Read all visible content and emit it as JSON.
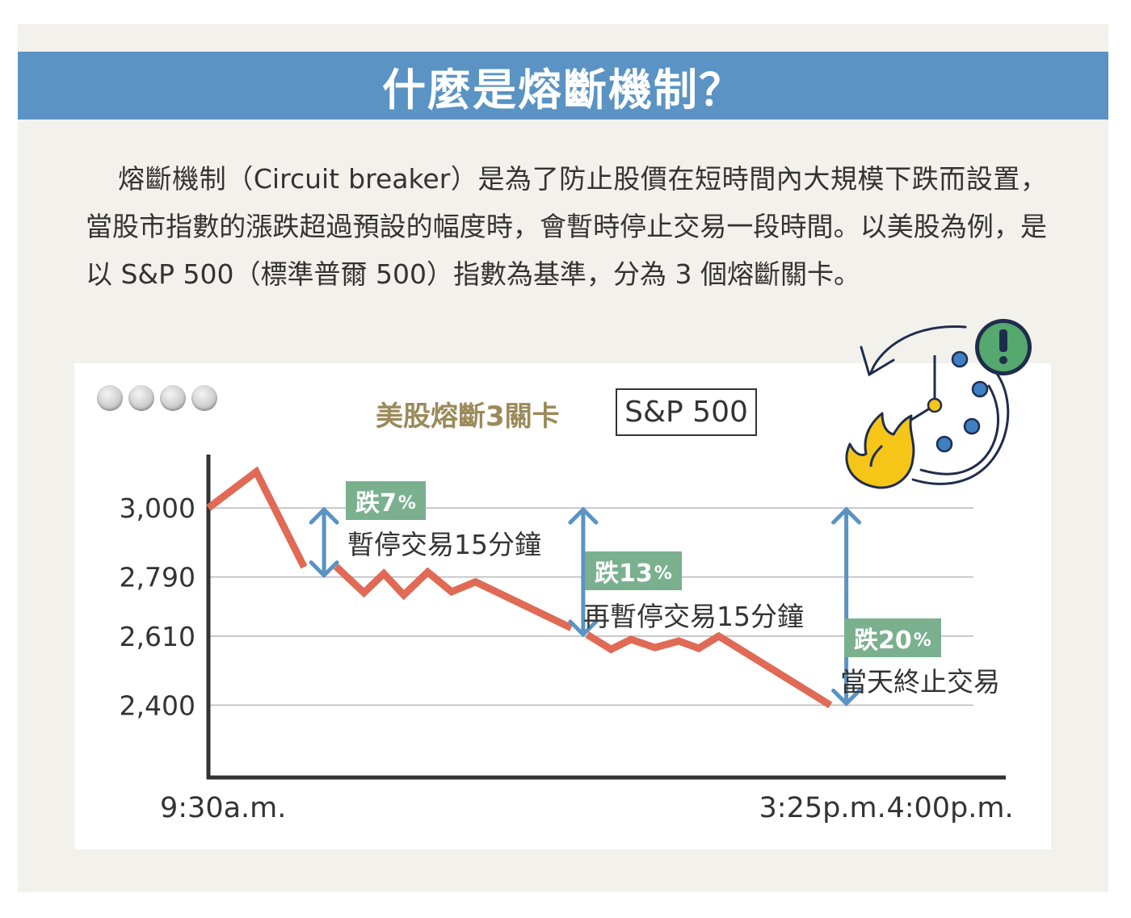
{
  "page": {
    "title": "什麼是熔斷機制？",
    "intro": "熔斷機制（Circuit breaker）是為了防止股價在短時間內大規模下跌而設置，當股市指數的漲跌超過預設的幅度時，會暫時停止交易一段時間。以美股為例，是以 S&P 500（標準普爾 500）指數為基準，分為 3 個熔斷關卡。"
  },
  "chart_data": {
    "type": "line",
    "title": "美股熔斷3關卡",
    "index_label": "S&P 500",
    "yticks": [
      3000,
      2790,
      2610,
      2400
    ],
    "ytick_labels": [
      "3,000",
      "2,790",
      "2,610",
      "2,400"
    ],
    "ylim": [
      2180,
      3150
    ],
    "xlim": [
      0,
      1000
    ],
    "xtick_labels": [
      {
        "x": 0,
        "label": "9:30a.m."
      },
      {
        "x": 760,
        "label": "3:25p.m."
      },
      {
        "x": 920,
        "label": "4:00p.m."
      }
    ],
    "series": [
      {
        "color": "#e06a55",
        "segments": [
          [
            [
              0,
              3000
            ],
            [
              60,
              3110
            ],
            [
              120,
              2820
            ]
          ],
          [
            [
              160,
              2822
            ],
            [
              195,
              2742
            ],
            [
              220,
              2800
            ],
            [
              245,
              2735
            ],
            [
              275,
              2805
            ],
            [
              305,
              2745
            ],
            [
              335,
              2775
            ],
            [
              455,
              2635
            ]
          ],
          [
            [
              475,
              2615
            ],
            [
              505,
              2570
            ],
            [
              530,
              2600
            ],
            [
              560,
              2575
            ],
            [
              590,
              2595
            ],
            [
              615,
              2573
            ],
            [
              640,
              2610
            ],
            [
              780,
              2400
            ]
          ]
        ]
      }
    ],
    "gridlines": [
      3000,
      2790,
      2610,
      2400
    ],
    "grid": true,
    "annotations": [
      {
        "badge_main": "跌7",
        "badge_unit": "%",
        "text": "暫停交易15分鐘",
        "x": 145,
        "y_from": 3000,
        "y_to": 2790
      },
      {
        "badge_main": "跌13",
        "badge_unit": "%",
        "text": "再暫停交易15分鐘",
        "x": 470,
        "y_from": 3000,
        "y_to": 2610
      },
      {
        "badge_main": "跌20",
        "badge_unit": "%",
        "text": "當天終止交易",
        "x": 800,
        "y_from": 3000,
        "y_to": 2400
      }
    ],
    "colors": {
      "line": "#e06a55",
      "arrow": "#5a93c4",
      "badge": "#7ab08e",
      "title": "#9b8a5a",
      "header": "#5a93c4"
    },
    "decoration_icons": [
      "fire-icon",
      "clock-icon",
      "warning-icon",
      "cycle-arrow-icon"
    ]
  }
}
